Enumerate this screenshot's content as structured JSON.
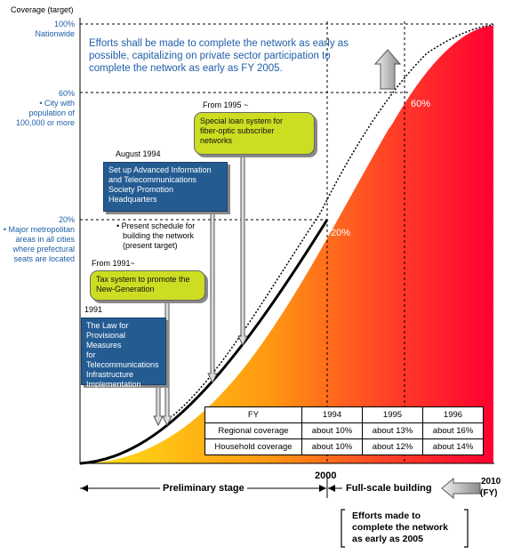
{
  "axis": {
    "title": "Coverage (target)",
    "y100_pct": "100%",
    "y100_desc": "Nationwide",
    "y60_pct": "60%",
    "y60_desc1": "• City with",
    "y60_desc2": "population of",
    "y60_desc3": "100,000 or more",
    "y20_pct": "20%",
    "y20_desc1": "• Major metropolitan",
    "y20_desc2": "areas in all cities",
    "y20_desc3": "where prefectural",
    "y20_desc4": "seats are located"
  },
  "headline": {
    "line1": "Efforts shall be made to complete the network as early as",
    "line2": "possible, capitalizing on private sector participation to",
    "line3": "complete the network as early as FY 2005."
  },
  "markers": {
    "pct60": "60%",
    "pct20": "20%"
  },
  "events": {
    "from1995": "From 1995 ~",
    "special_loan": [
      "Special loan system for",
      "fiber-optic subscriber",
      "networks"
    ],
    "aug1994": "August 1994",
    "headquarters": [
      "Set up Advanced Information",
      "and Telecommunications",
      "Society Promotion",
      "Headquarters"
    ],
    "present_schedule": [
      "• Present schedule for",
      "building the network",
      "(present target)"
    ],
    "from1991": "From 1991~",
    "tax_system": [
      "Tax system to promote the",
      "New-Generation"
    ],
    "y1991": "1991",
    "law": [
      "The Law for",
      "Provisional Measures",
      "for",
      "Telecommunications",
      "Infrastructure",
      "Implementation"
    ]
  },
  "table": {
    "headers": [
      "FY",
      "1994",
      "1995",
      "1996"
    ],
    "rows": [
      [
        "Regional coverage",
        "about 10%",
        "about 13%",
        "about 16%"
      ],
      [
        "Household coverage",
        "about 10%",
        "about 12%",
        "about 14%"
      ]
    ]
  },
  "timeline": {
    "year2000": "2000",
    "year2010": "2010",
    "fy": "(FY)",
    "preliminary": "Preliminary stage",
    "fullscale": "Full-scale building",
    "efforts": [
      "Efforts made to",
      "complete the network",
      "as early as 2005"
    ]
  },
  "colors": {
    "gradient_start": "#ffe21a",
    "gradient_end": "#ff0030",
    "blue_box": "#245c92",
    "green_box": "#ccdd22",
    "label_blue": "#1f5fa8"
  }
}
